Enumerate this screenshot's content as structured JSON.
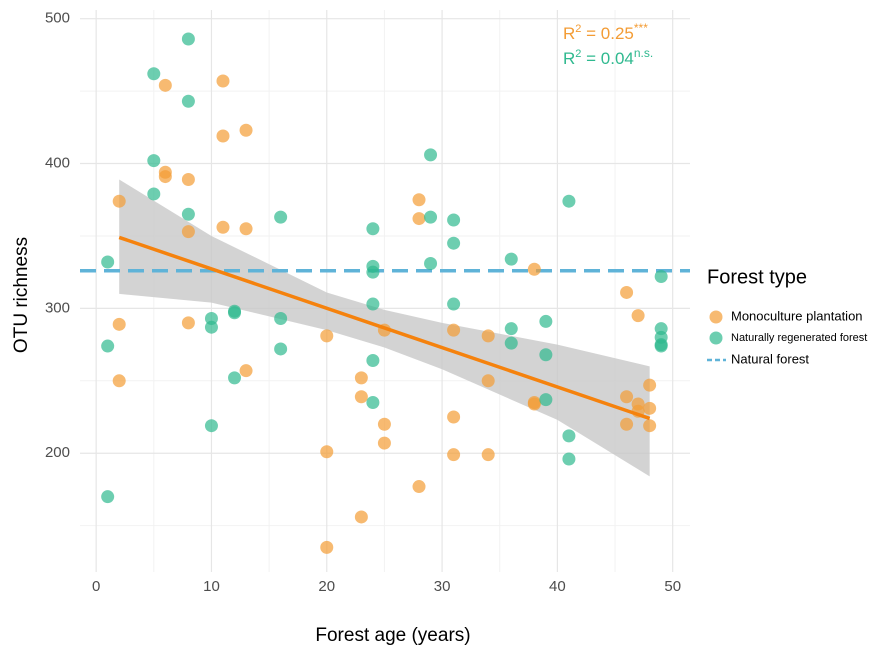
{
  "chart_data": {
    "type": "scatter",
    "x_label": "Forest age (years)",
    "y_label": "OTU richness",
    "xlim": [
      -1.4,
      51.5
    ],
    "ylim": [
      118,
      506
    ],
    "xticks": [
      0,
      10,
      20,
      30,
      40,
      50
    ],
    "yticks": [
      200,
      300,
      400,
      500
    ],
    "x_minor_ticks": [
      5,
      15,
      25,
      35,
      45
    ],
    "y_minor_ticks": [
      150,
      250,
      350,
      450
    ],
    "grid": true,
    "legend_title": "Forest type",
    "legend_position": "right",
    "series": [
      {
        "name": "Monoculture plantation",
        "color": "#f39c35",
        "x": [
          2,
          2,
          2,
          6,
          6,
          6,
          8,
          8,
          8,
          11,
          11,
          11,
          13,
          13,
          13,
          20,
          20,
          20,
          23,
          23,
          23,
          25,
          25,
          25,
          28,
          28,
          28,
          31,
          31,
          31,
          34,
          34,
          34,
          38,
          38,
          38,
          46,
          46,
          46,
          47,
          47,
          47,
          48,
          48,
          48
        ],
        "values": [
          374,
          289,
          250,
          454,
          394,
          391,
          389,
          353,
          290,
          457,
          419,
          356,
          423,
          355,
          257,
          281,
          201,
          135,
          252,
          239,
          156,
          285,
          220,
          207,
          375,
          362,
          177,
          285,
          225,
          199,
          281,
          250,
          199,
          327,
          235,
          234,
          311,
          239,
          220,
          295,
          234,
          229,
          247,
          231,
          219
        ]
      },
      {
        "name": "Naturally regenerated forest",
        "color": "#2fb98f",
        "x": [
          1,
          1,
          1,
          5,
          5,
          5,
          8,
          8,
          8,
          10,
          10,
          10,
          12,
          12,
          12,
          16,
          16,
          16,
          24,
          24,
          24,
          24,
          24,
          24,
          29,
          29,
          29,
          31,
          31,
          31,
          36,
          36,
          36,
          39,
          39,
          39,
          41,
          41,
          41,
          49,
          49,
          49,
          49,
          49
        ],
        "values": [
          332,
          274,
          170,
          462,
          402,
          379,
          486,
          443,
          365,
          293,
          287,
          219,
          298,
          297,
          252,
          363,
          293,
          272,
          355,
          329,
          325,
          303,
          264,
          235,
          406,
          363,
          331,
          361,
          345,
          303,
          334,
          286,
          276,
          291,
          268,
          237,
          374,
          212,
          196,
          322,
          286,
          280,
          275,
          274
        ]
      }
    ],
    "reference_line": {
      "name": "Natural forest",
      "value": 326,
      "color": "#5fb3d8"
    },
    "fit": {
      "color": "#f5820d",
      "x": [
        2,
        48
      ],
      "y": [
        349,
        224
      ]
    },
    "confidence_band": {
      "color": "#c8c8c8",
      "x": [
        2,
        10,
        20,
        25,
        30,
        40,
        48
      ],
      "upper": [
        389,
        350,
        311,
        299,
        290,
        275,
        260
      ],
      "lower": [
        310,
        304,
        285,
        273,
        258,
        223,
        184
      ]
    },
    "annotations": [
      {
        "label": "R",
        "power": "2",
        "text": " = 0.25",
        "sig": "***",
        "color": "#f39c35"
      },
      {
        "label": "R",
        "power": "2",
        "text": " = 0.04",
        "sig": "n.s.",
        "color": "#2fb98f"
      }
    ]
  }
}
